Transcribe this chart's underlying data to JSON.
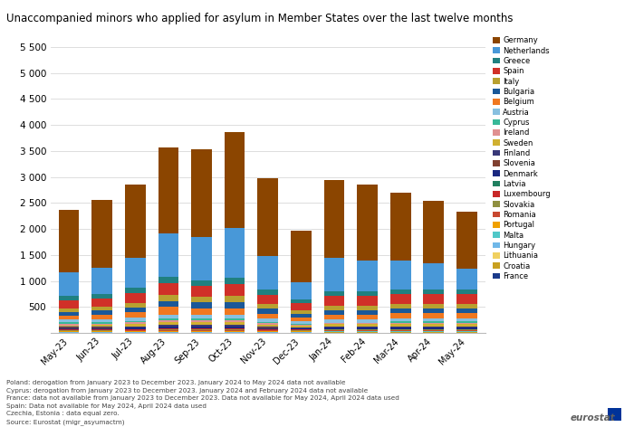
{
  "title": "Unaccompanied minors who applied for asylum in Member States over the last twelve months",
  "months": [
    "May-23",
    "Jun-23",
    "Jul-23",
    "Aug-23",
    "Sep-23",
    "Oct-23",
    "Nov-23",
    "Dec-23",
    "Jan-24",
    "Feb-24",
    "Mar-24",
    "Apr-24",
    "May-24"
  ],
  "footnote": "Poland: derogation from January 2023 to December 2023. January 2024 to May 2024 data not available\nCyprus: derogation from January 2023 to December 2023. January 2024 and February 2024 data not available\nFrance: data not available from January 2023 to December 2023. Data not available for May 2024, April 2024 data used\nSpain: Data not available for May 2024, April 2024 data used\nCzechia, Estonia : data equal zero.\nSource: Eurostat (migr_asyumactm)",
  "countries_bottom_to_top": [
    "France",
    "Croatia",
    "Lithuania",
    "Hungary",
    "Malta",
    "Portugal",
    "Romania",
    "Slovakia",
    "Luxembourg",
    "Latvia",
    "Denmark",
    "Slovenia",
    "Finland",
    "Sweden",
    "Ireland",
    "Cyprus",
    "Austria",
    "Belgium",
    "Bulgaria",
    "Italy",
    "Spain",
    "Greece",
    "Netherlands",
    "Germany"
  ],
  "colors": {
    "France": "#1a3a8a",
    "Croatia": "#c8a020",
    "Lithuania": "#f0d060",
    "Hungary": "#70b8e8",
    "Malta": "#50c8c8",
    "Portugal": "#f0a000",
    "Romania": "#c84830",
    "Slovakia": "#909040",
    "Luxembourg": "#c82828",
    "Latvia": "#208060",
    "Denmark": "#1a2880",
    "Slovenia": "#804030",
    "Finland": "#383878",
    "Sweden": "#d0b030",
    "Ireland": "#e09090",
    "Cyprus": "#38b898",
    "Austria": "#88c0e0",
    "Belgium": "#f07820",
    "Bulgaria": "#1a5898",
    "Italy": "#b8a030",
    "Spain": "#d03028",
    "Greece": "#208080",
    "Netherlands": "#4898d8",
    "Germany": "#8b4500"
  },
  "data": {
    "France": [
      0,
      0,
      0,
      0,
      0,
      0,
      0,
      0,
      10,
      10,
      10,
      10,
      10
    ],
    "Croatia": [
      5,
      5,
      5,
      5,
      5,
      5,
      5,
      5,
      5,
      5,
      5,
      5,
      5
    ],
    "Lithuania": [
      5,
      5,
      5,
      5,
      5,
      5,
      5,
      5,
      5,
      5,
      5,
      5,
      5
    ],
    "Hungary": [
      5,
      5,
      5,
      5,
      5,
      5,
      5,
      5,
      5,
      5,
      5,
      5,
      5
    ],
    "Malta": [
      5,
      5,
      5,
      5,
      5,
      5,
      5,
      5,
      5,
      5,
      5,
      5,
      5
    ],
    "Portugal": [
      10,
      10,
      10,
      15,
      15,
      15,
      10,
      10,
      10,
      10,
      10,
      10,
      10
    ],
    "Romania": [
      15,
      15,
      20,
      25,
      25,
      25,
      20,
      15,
      15,
      15,
      15,
      15,
      15
    ],
    "Slovakia": [
      10,
      10,
      10,
      15,
      15,
      15,
      10,
      10,
      10,
      10,
      10,
      10,
      10
    ],
    "Luxembourg": [
      10,
      10,
      10,
      10,
      10,
      10,
      10,
      10,
      10,
      10,
      10,
      10,
      10
    ],
    "Latvia": [
      5,
      5,
      5,
      5,
      5,
      5,
      5,
      5,
      5,
      5,
      5,
      5,
      5
    ],
    "Denmark": [
      20,
      20,
      25,
      30,
      30,
      30,
      20,
      15,
      20,
      20,
      20,
      20,
      20
    ],
    "Slovenia": [
      10,
      10,
      10,
      10,
      10,
      10,
      10,
      10,
      10,
      10,
      10,
      10,
      10
    ],
    "Finland": [
      20,
      20,
      20,
      25,
      25,
      25,
      20,
      15,
      20,
      20,
      20,
      20,
      20
    ],
    "Sweden": [
      30,
      35,
      40,
      50,
      50,
      50,
      40,
      30,
      40,
      40,
      40,
      40,
      40
    ],
    "Ireland": [
      30,
      30,
      35,
      40,
      40,
      40,
      30,
      25,
      30,
      30,
      30,
      30,
      30
    ],
    "Cyprus": [
      25,
      25,
      30,
      35,
      35,
      35,
      25,
      20,
      0,
      0,
      25,
      25,
      25
    ],
    "Austria": [
      50,
      55,
      60,
      70,
      70,
      70,
      60,
      45,
      55,
      55,
      60,
      60,
      60
    ],
    "Belgium": [
      75,
      80,
      100,
      150,
      130,
      130,
      95,
      70,
      95,
      95,
      100,
      100,
      100
    ],
    "Bulgaria": [
      80,
      85,
      100,
      120,
      110,
      120,
      95,
      70,
      90,
      90,
      90,
      90,
      90
    ],
    "Italy": [
      70,
      75,
      90,
      110,
      100,
      110,
      85,
      65,
      80,
      80,
      80,
      80,
      80
    ],
    "Spain": [
      150,
      160,
      190,
      230,
      220,
      240,
      185,
      140,
      195,
      195,
      200,
      195,
      195
    ],
    "Greece": [
      80,
      90,
      100,
      120,
      110,
      120,
      90,
      65,
      85,
      85,
      85,
      85,
      85
    ],
    "Netherlands": [
      450,
      500,
      580,
      830,
      820,
      950,
      650,
      330,
      650,
      600,
      550,
      500,
      400
    ],
    "Germany": [
      1200,
      1300,
      1400,
      1650,
      1700,
      1850,
      1500,
      1000,
      1500,
      1450,
      1300,
      1200,
      1100
    ]
  },
  "ylim": [
    0,
    5500
  ],
  "yticks": [
    0,
    500,
    1000,
    1500,
    2000,
    2500,
    3000,
    3500,
    4000,
    4500,
    5000,
    5500
  ],
  "ytick_labels": [
    "",
    "500",
    "1 000",
    "1 500",
    "2 000",
    "2 500",
    "3 000",
    "3 500",
    "4 000",
    "4 500",
    "5 000",
    "5 500"
  ],
  "background_color": "#ffffff",
  "grid_color": "#d8d8d8"
}
